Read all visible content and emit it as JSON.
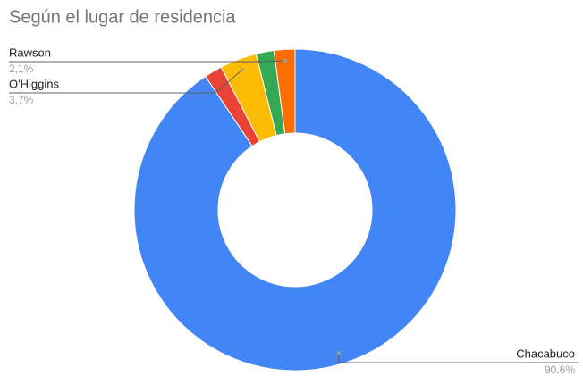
{
  "chart_data": {
    "type": "donut",
    "title": "Según el lugar de residencia",
    "categories": [
      "Chacabuco",
      null,
      "O'Higgins",
      null,
      "Rawson"
    ],
    "values": [
      90.6,
      1.8,
      3.7,
      1.8,
      2.1
    ],
    "value_labels": [
      "90.6%",
      null,
      "3,7%",
      null,
      "2,1%"
    ],
    "colors": [
      "#4285f4",
      "#ea4335",
      "#fbbc04",
      "#34a853",
      "#ff6d01"
    ]
  }
}
